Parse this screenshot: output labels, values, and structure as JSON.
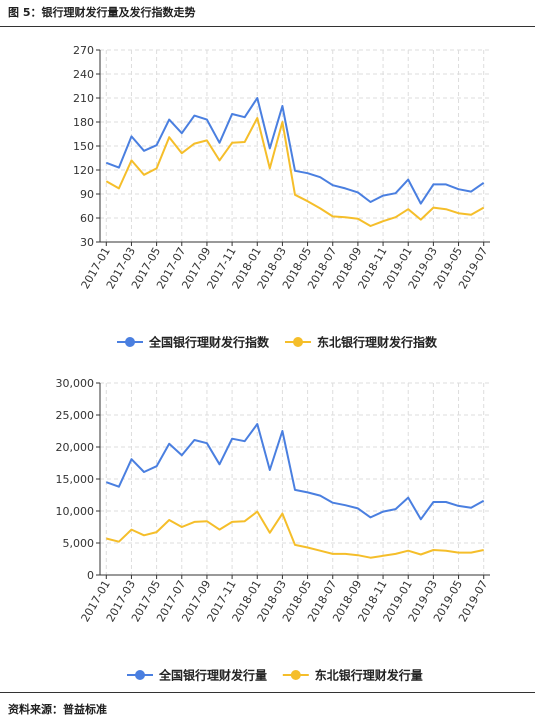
{
  "figure": {
    "title": "图 5：银行理财发行量及发行指数走势",
    "source": "资料来源：普益标准"
  },
  "colors": {
    "national": "#4A7FE0",
    "northeast": "#F5BE2A",
    "grid": "#dddddd",
    "axis": "#333333"
  },
  "chart_data": [
    {
      "type": "line",
      "title": "",
      "xlabel": "",
      "ylabel": "",
      "ylim": [
        30,
        270
      ],
      "yticks": [
        "30",
        "60",
        "90",
        "120",
        "150",
        "180",
        "210",
        "240",
        "270"
      ],
      "grid": true,
      "legend": "bottom",
      "x": [
        "2017-01",
        "2017-02",
        "2017-03",
        "2017-04",
        "2017-05",
        "2017-06",
        "2017-07",
        "2017-08",
        "2017-09",
        "2017-10",
        "2017-11",
        "2017-12",
        "2018-01",
        "2018-02",
        "2018-03",
        "2018-04",
        "2018-05",
        "2018-06",
        "2018-07",
        "2018-08",
        "2018-09",
        "2018-10",
        "2018-11",
        "2018-12",
        "2019-01",
        "2019-02",
        "2019-03",
        "2019-04",
        "2019-05",
        "2019-06",
        "2019-07"
      ],
      "xtick_labels": [
        "2017-01",
        "2017-03",
        "2017-05",
        "2017-07",
        "2017-09",
        "2017-11",
        "2018-01",
        "2018-03",
        "2018-05",
        "2018-07",
        "2018-09",
        "2018-11",
        "2019-01",
        "2019-03",
        "2019-05",
        "2019-07"
      ],
      "series": [
        {
          "name": "全国银行理财发行指数",
          "color": "#4A7FE0",
          "values": [
            129,
            123,
            162,
            144,
            151,
            183,
            166,
            188,
            183,
            154,
            190,
            186,
            210,
            147,
            200,
            119,
            116,
            111,
            101,
            97,
            92,
            80,
            88,
            91,
            108,
            78,
            102,
            102,
            96,
            93,
            104
          ]
        },
        {
          "name": "东北银行理财发行指数",
          "color": "#F5BE2A",
          "values": [
            106,
            97,
            132,
            114,
            122,
            161,
            141,
            153,
            157,
            132,
            154,
            155,
            185,
            122,
            180,
            89,
            81,
            72,
            62,
            61,
            59,
            50,
            56,
            61,
            71,
            58,
            73,
            71,
            66,
            64,
            73
          ]
        }
      ]
    },
    {
      "type": "line",
      "title": "",
      "xlabel": "",
      "ylabel": "",
      "ylim": [
        0,
        30000
      ],
      "yticks": [
        "0",
        "5,000",
        "10,000",
        "15,000",
        "20,000",
        "25,000",
        "30,000"
      ],
      "grid": true,
      "legend": "bottom",
      "x": [
        "2017-01",
        "2017-02",
        "2017-03",
        "2017-04",
        "2017-05",
        "2017-06",
        "2017-07",
        "2017-08",
        "2017-09",
        "2017-10",
        "2017-11",
        "2017-12",
        "2018-01",
        "2018-02",
        "2018-03",
        "2018-04",
        "2018-05",
        "2018-06",
        "2018-07",
        "2018-08",
        "2018-09",
        "2018-10",
        "2018-11",
        "2018-12",
        "2019-01",
        "2019-02",
        "2019-03",
        "2019-04",
        "2019-05",
        "2019-06",
        "2019-07"
      ],
      "xtick_labels": [
        "2017-01",
        "2017-03",
        "2017-05",
        "2017-07",
        "2017-09",
        "2017-11",
        "2018-01",
        "2018-03",
        "2018-05",
        "2018-07",
        "2018-09",
        "2018-11",
        "2019-01",
        "2019-03",
        "2019-05",
        "2019-07"
      ],
      "series": [
        {
          "name": "全国银行理财发行量",
          "color": "#4A7FE0",
          "values": [
            14500,
            13800,
            18100,
            16100,
            17000,
            20500,
            18700,
            21100,
            20600,
            17300,
            21300,
            20900,
            23600,
            16400,
            22500,
            13300,
            12900,
            12400,
            11300,
            10900,
            10400,
            9000,
            9900,
            10300,
            12100,
            8700,
            11400,
            11400,
            10800,
            10500,
            11600
          ]
        },
        {
          "name": "东北银行理财发行量",
          "color": "#F5BE2A",
          "values": [
            5700,
            5200,
            7100,
            6200,
            6700,
            8600,
            7500,
            8300,
            8400,
            7100,
            8300,
            8400,
            9900,
            6600,
            9600,
            4700,
            4300,
            3800,
            3300,
            3300,
            3100,
            2700,
            3000,
            3300,
            3800,
            3200,
            3900,
            3800,
            3500,
            3500,
            3900
          ]
        }
      ]
    }
  ]
}
